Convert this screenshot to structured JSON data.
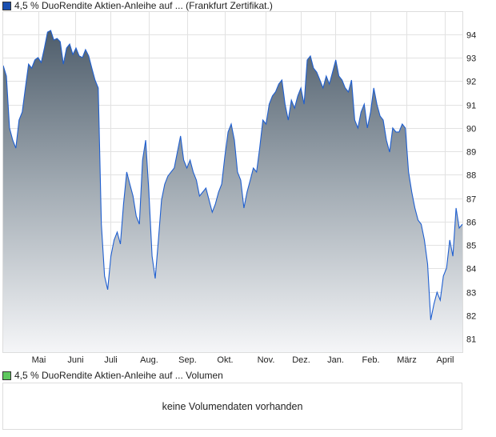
{
  "price_legend": {
    "label": "4,5 % DuoRendite Aktien-Anleihe auf ... (Frankfurt Zertifikat.)",
    "color": "#1a4fb0"
  },
  "volume_legend": {
    "label": "4,5 % DuoRendite Aktien-Anleihe auf ... Volumen",
    "color": "#5fc85f"
  },
  "volume_message": "keine Volumendaten vorhanden",
  "chart_data": {
    "type": "area",
    "title": "4,5 % DuoRendite Aktien-Anleihe auf ... (Frankfurt Zertifikat.)",
    "xlabel": "",
    "ylabel": "",
    "ylim": [
      80.3,
      95.1
    ],
    "y_ticks": [
      81,
      82,
      83,
      84,
      85,
      86,
      87,
      88,
      89,
      90,
      91,
      92,
      93,
      94
    ],
    "x_ticks": [
      "Mai",
      "Juni",
      "Juli",
      "Aug.",
      "Sep.",
      "Okt.",
      "Nov.",
      "Dez.",
      "Jan.",
      "Feb.",
      "März",
      "April"
    ],
    "grid": true,
    "line_color": "#1f5fd0",
    "values": [
      92.67,
      92.22,
      90.0,
      89.48,
      89.14,
      90.34,
      90.68,
      91.71,
      92.73,
      92.56,
      92.91,
      93.01,
      92.8,
      93.42,
      94.1,
      94.17,
      93.76,
      93.83,
      93.69,
      92.73,
      93.42,
      93.59,
      93.14,
      93.42,
      93.08,
      93.01,
      93.35,
      93.08,
      92.56,
      92.05,
      91.71,
      85.89,
      83.67,
      83.09,
      84.52,
      85.21,
      85.55,
      85.04,
      86.75,
      88.12,
      87.6,
      87.09,
      86.23,
      85.89,
      88.63,
      89.48,
      87.26,
      84.52,
      83.57,
      85.21,
      86.92,
      87.6,
      87.94,
      88.12,
      88.29,
      88.97,
      89.66,
      88.63,
      88.29,
      88.63,
      88.12,
      87.77,
      87.09,
      87.26,
      87.43,
      86.92,
      86.4,
      86.75,
      87.26,
      87.6,
      88.8,
      89.83,
      90.17,
      89.48,
      88.12,
      87.77,
      86.58,
      87.26,
      87.77,
      88.29,
      88.12,
      89.14,
      90.34,
      90.17,
      91.02,
      91.37,
      91.54,
      91.88,
      92.05,
      91.02,
      90.34,
      91.19,
      90.85,
      91.37,
      91.71,
      91.02,
      92.91,
      93.08,
      92.56,
      92.39,
      92.05,
      91.71,
      92.22,
      91.88,
      92.39,
      92.91,
      92.22,
      92.05,
      91.71,
      91.54,
      92.05,
      90.34,
      90.0,
      90.68,
      91.02,
      90.0,
      90.68,
      91.71,
      91.02,
      90.51,
      90.34,
      89.48,
      88.97,
      90.0,
      89.83,
      89.83,
      90.17,
      90.0,
      88.12,
      87.26,
      86.58,
      86.06,
      85.89,
      85.21,
      84.18,
      81.79,
      82.47,
      82.98,
      82.64,
      83.67,
      84.01,
      85.21,
      84.52,
      86.58,
      85.72,
      85.89
    ]
  }
}
